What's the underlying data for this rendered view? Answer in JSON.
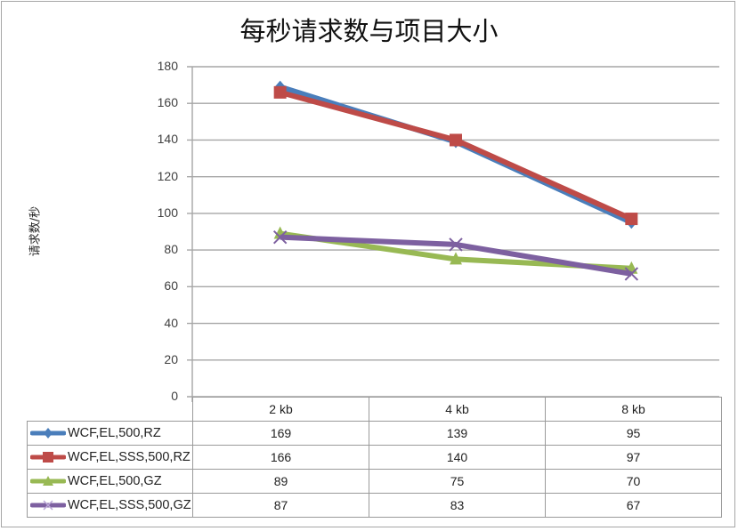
{
  "chart_data": {
    "type": "line",
    "title": "每秒请求数与项目大小",
    "xlabel": "",
    "ylabel": "请求数/秒",
    "ylim": [
      0,
      180
    ],
    "yticks": [
      0,
      20,
      40,
      60,
      80,
      100,
      120,
      140,
      160,
      180
    ],
    "grid": true,
    "legend_position": "data-table",
    "categories": [
      "2 kb",
      "4 kb",
      "8 kb"
    ],
    "series": [
      {
        "name": "WCF,EL,500,RZ",
        "values": [
          169,
          139,
          95
        ],
        "color": "#4a7ebb",
        "marker": "diamond"
      },
      {
        "name": "WCF,EL,SSS,500,RZ",
        "values": [
          166,
          140,
          97
        ],
        "color": "#be4b48",
        "marker": "square"
      },
      {
        "name": "WCF,EL,500,GZ",
        "values": [
          89,
          75,
          70
        ],
        "color": "#98b954",
        "marker": "triangle"
      },
      {
        "name": "WCF,EL,SSS,500,GZ",
        "values": [
          87,
          83,
          67
        ],
        "color": "#7d60a0",
        "marker": "x"
      }
    ]
  },
  "table": {
    "headers": [
      "2 kb",
      "4 kb",
      "8 kb"
    ],
    "rows": [
      {
        "label": "WCF,EL,500,RZ",
        "cells": [
          "169",
          "139",
          "95"
        ]
      },
      {
        "label": "WCF,EL,SSS,500,RZ",
        "cells": [
          "166",
          "140",
          "97"
        ]
      },
      {
        "label": "WCF,EL,500,GZ",
        "cells": [
          "89",
          "75",
          "70"
        ]
      },
      {
        "label": "WCF,EL,SSS,500,GZ",
        "cells": [
          "87",
          "83",
          "67"
        ]
      }
    ]
  },
  "yticks_labels": [
    "180",
    "160",
    "140",
    "120",
    "100",
    "80",
    "60",
    "40",
    "20",
    "0"
  ]
}
